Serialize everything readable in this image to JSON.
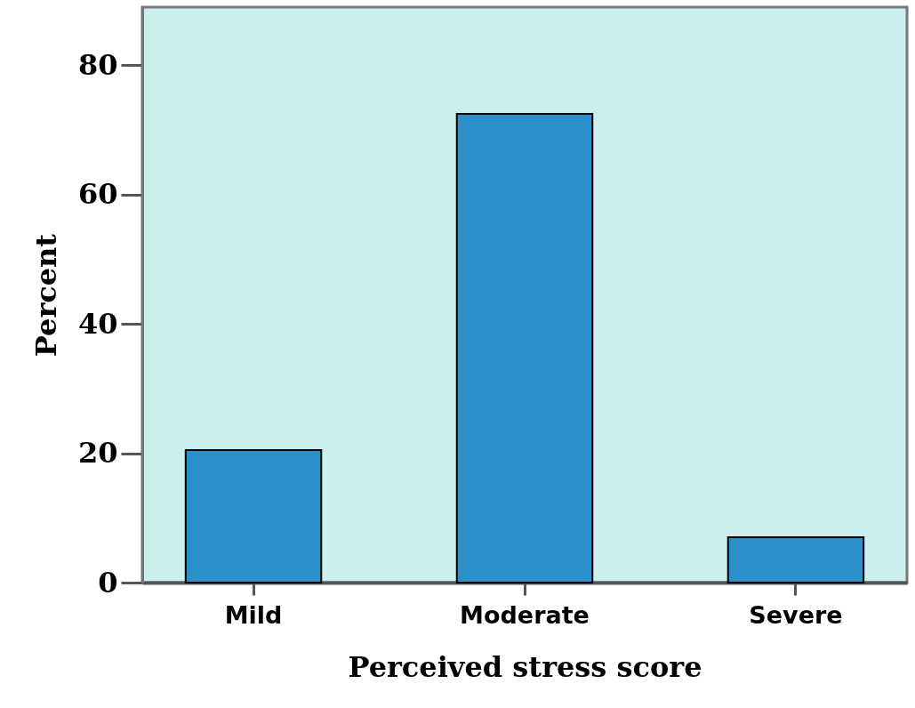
{
  "chart_data": {
    "type": "bar",
    "xlabel": "Perceived stress score",
    "ylabel": "Percent",
    "categories": [
      "Mild",
      "Moderate",
      "Severe"
    ],
    "values": [
      20.5,
      72.5,
      7.0
    ],
    "color": "#2b8fc9",
    "ylim": [
      0,
      89
    ],
    "yticks": [
      0,
      20,
      40,
      60,
      80
    ]
  }
}
